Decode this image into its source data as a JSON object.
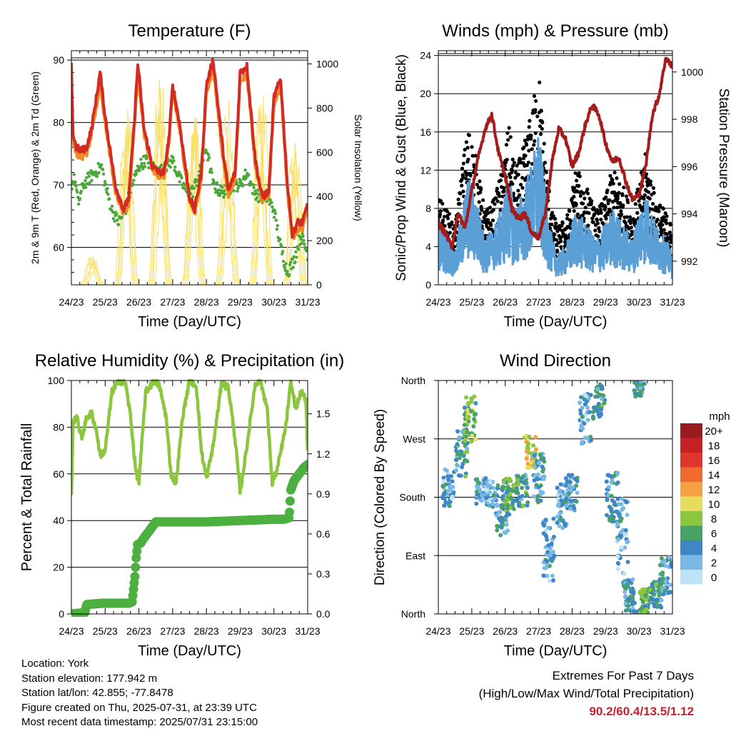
{
  "footer": {
    "location": "Location: York",
    "elevation": "Station elevation: 177.942 m",
    "latlon": "Station lat/lon: 42.855; -77.8478",
    "created": "Figure created on Thu, 2025-07-31, at 23:39 UTC",
    "recent": "Most recent data timestamp: 2025/07/31 23:15:00"
  },
  "extremes": {
    "title": "Extremes For Past 7 Days",
    "subtitle": "(High/Low/Max Wind/Total Precipitation)",
    "values": "90.2/60.4/13.5/1.12"
  },
  "chart_data": [
    {
      "id": "temperature",
      "type": "line",
      "title": "Temperature (F)",
      "xlabel": "Time (Day/UTC)",
      "ylabel": "2m & 9m T (Red, Orange) & 2m Td (Green)",
      "y2label": "Solar Insolation (Yellow)",
      "x_ticks": [
        "24/23",
        "25/23",
        "26/23",
        "27/23",
        "28/23",
        "29/23",
        "30/23",
        "31/23"
      ],
      "xlim": [
        0,
        7
      ],
      "ylim": [
        54,
        91.5
      ],
      "y_ticks": [
        60,
        70,
        80,
        90
      ],
      "y2lim": [
        0,
        1060
      ],
      "y2_ticks": [
        0,
        200,
        400,
        600,
        800,
        1000
      ],
      "grid": true,
      "series": [
        {
          "name": "2m T",
          "color": "#d42a24",
          "x": [
            0,
            0.05,
            0.15,
            0.3,
            0.45,
            0.6,
            0.85,
            1.0,
            1.3,
            1.55,
            1.7,
            1.85,
            1.97,
            2.15,
            2.4,
            2.6,
            2.75,
            2.9,
            3.0,
            3.2,
            3.5,
            3.65,
            3.85,
            4.0,
            4.2,
            4.5,
            4.65,
            4.85,
            5.0,
            5.2,
            5.45,
            5.65,
            5.85,
            6.0,
            6.2,
            6.4,
            6.55,
            6.7,
            6.85,
            7.0
          ],
          "y": [
            89,
            78,
            76,
            75.5,
            76,
            79,
            88,
            81,
            70,
            66,
            68,
            79,
            89.5,
            79,
            73,
            72,
            72,
            78,
            86,
            80,
            68,
            66,
            72,
            86,
            90,
            75,
            69,
            72,
            88,
            89,
            74,
            68,
            69,
            84,
            87,
            70,
            62,
            64,
            64,
            67
          ]
        },
        {
          "name": "9m T",
          "color": "#f08a24",
          "x": [
            0,
            0.05,
            0.15,
            0.3,
            0.45,
            0.6,
            0.85,
            1.0,
            1.3,
            1.55,
            1.7,
            1.85,
            1.97,
            2.15,
            2.4,
            2.6,
            2.75,
            2.9,
            3.0,
            3.2,
            3.5,
            3.65,
            3.85,
            4.0,
            4.2,
            4.5,
            4.65,
            4.85,
            5.0,
            5.2,
            5.45,
            5.65,
            5.85,
            6.0,
            6.2,
            6.4,
            6.55,
            6.7,
            6.85,
            7.0
          ],
          "y": [
            88,
            77,
            75,
            74.5,
            75,
            78,
            86,
            80,
            69,
            65.5,
            67,
            78,
            88,
            78,
            72.5,
            71.5,
            71.5,
            77,
            85,
            79,
            67.5,
            65.5,
            71,
            85,
            88.5,
            74,
            68.5,
            71,
            87,
            87.5,
            73,
            67.5,
            68.5,
            83,
            86,
            69,
            61.5,
            63,
            63,
            66
          ]
        },
        {
          "name": "2m Td",
          "color": "#4aa83a",
          "x": [
            0,
            0.1,
            0.2,
            0.35,
            0.5,
            0.7,
            0.9,
            1.0,
            1.2,
            1.4,
            1.6,
            1.8,
            2.0,
            2.2,
            2.4,
            2.6,
            2.8,
            3.0,
            3.2,
            3.4,
            3.6,
            3.8,
            4.0,
            4.2,
            4.4,
            4.6,
            4.8,
            5.0,
            5.2,
            5.4,
            5.6,
            5.8,
            6.0,
            6.2,
            6.4,
            6.6,
            6.8,
            7.0
          ],
          "y": [
            70,
            71,
            67,
            70,
            71,
            72,
            73,
            70,
            66,
            64,
            66,
            70,
            73,
            74,
            73,
            72,
            73,
            74,
            71,
            69,
            69,
            72,
            76,
            70,
            69,
            69,
            70,
            70,
            72,
            69,
            68,
            68,
            66,
            60,
            56,
            58,
            62,
            59
          ]
        }
      ],
      "secondary": {
        "name": "Solar Insolation",
        "color": "#f8e06a",
        "peaks": [
          {
            "day": 0,
            "peak": 150
          },
          {
            "day": 1,
            "peak": 1000
          },
          {
            "day": 2,
            "peak": 1020
          },
          {
            "day": 3,
            "peak": 950
          },
          {
            "day": 4,
            "peak": 1000
          },
          {
            "day": 5,
            "peak": 980
          },
          {
            "day": 6,
            "peak": 880
          }
        ]
      }
    },
    {
      "id": "winds",
      "type": "line",
      "title": "Winds (mph) & Pressure (mb)",
      "xlabel": "Time (Day/UTC)",
      "ylabel": "Sonic/Prop Wind & Gust (Blue, Black)",
      "y2label": "Station Pressure (Maroon)",
      "x_ticks": [
        "24/23",
        "25/23",
        "26/23",
        "27/23",
        "28/23",
        "29/23",
        "30/23",
        "31/23"
      ],
      "xlim": [
        0,
        7
      ],
      "ylim": [
        0,
        24.5
      ],
      "y_ticks": [
        0,
        4,
        8,
        12,
        16,
        20,
        24
      ],
      "y2lim": [
        991.0,
        1000.9
      ],
      "y2_ticks": [
        992,
        994,
        996,
        998,
        1000
      ],
      "grid": true,
      "series": [
        {
          "name": "Sonic/Prop Wind",
          "color": "#5a9fd6",
          "x": [
            0,
            0.3,
            0.5,
            0.7,
            0.9,
            1.1,
            1.4,
            1.7,
            1.9,
            2.1,
            2.3,
            2.5,
            2.8,
            3.0,
            3.2,
            3.4,
            3.6,
            3.9,
            4.1,
            4.4,
            4.7,
            5.0,
            5.2,
            5.5,
            5.8,
            6.0,
            6.2,
            6.5,
            6.8,
            7.0
          ],
          "y": [
            4,
            3,
            2,
            5,
            7,
            6,
            3,
            4,
            5,
            7,
            5,
            6,
            8,
            10,
            6,
            3,
            2,
            3,
            5,
            4,
            3,
            4,
            5,
            4,
            3,
            5,
            6,
            4,
            3,
            2
          ]
        },
        {
          "name": "Gust",
          "color": "#000000",
          "x": [
            0,
            0.3,
            0.5,
            0.7,
            0.9,
            1.1,
            1.4,
            1.7,
            1.9,
            2.1,
            2.3,
            2.5,
            2.8,
            3.0,
            3.2,
            3.4,
            3.6,
            3.9,
            4.1,
            4.4,
            4.7,
            5.0,
            5.2,
            5.5,
            5.8,
            6.0,
            6.2,
            6.5,
            6.8,
            7.0
          ],
          "y": [
            6,
            5,
            4,
            8,
            11,
            9,
            5,
            6,
            8,
            11,
            8,
            9,
            12,
            15,
            9,
            5,
            4,
            5,
            8,
            7,
            5,
            6,
            8,
            7,
            5,
            7,
            9,
            6,
            5,
            4
          ]
        },
        {
          "name": "Station Pressure",
          "color": "#a41c1c",
          "x": [
            0,
            0.2,
            0.4,
            0.6,
            0.8,
            1.0,
            1.2,
            1.4,
            1.6,
            1.8,
            2.0,
            2.2,
            2.4,
            2.6,
            2.8,
            3.0,
            3.2,
            3.4,
            3.6,
            3.8,
            4.0,
            4.2,
            4.4,
            4.6,
            4.8,
            5.0,
            5.2,
            5.4,
            5.6,
            5.8,
            6.0,
            6.2,
            6.4,
            6.6,
            6.8,
            7.0
          ],
          "y": [
            993.6,
            993.2,
            992.6,
            994.0,
            993.4,
            995.0,
            996.4,
            997.6,
            998.2,
            996.6,
            995.6,
            994.2,
            993.8,
            994.0,
            993.2,
            993.0,
            994.0,
            996.2,
            997.6,
            997.2,
            996.0,
            996.6,
            997.8,
            998.6,
            998.2,
            997.0,
            996.2,
            996.4,
            995.4,
            994.6,
            994.8,
            996.0,
            998.2,
            999.0,
            1000.6,
            1000.2
          ]
        }
      ]
    },
    {
      "id": "humidity",
      "type": "line",
      "title": "Relative Humidity (%) & Precipitation (in)",
      "xlabel": "Time (Day/UTC)",
      "ylabel": "Percent & Total Rainfall",
      "x_ticks": [
        "24/23",
        "25/23",
        "26/23",
        "27/23",
        "28/23",
        "29/23",
        "30/23",
        "31/23"
      ],
      "xlim": [
        0,
        7
      ],
      "ylim": [
        0,
        100
      ],
      "y_ticks": [
        0,
        20,
        40,
        60,
        80,
        100
      ],
      "y2lim": [
        0,
        1.75
      ],
      "y2_ticks": [
        "0.0",
        "0.3",
        "0.6",
        "0.9",
        "1.2",
        "1.5"
      ],
      "grid": true,
      "series": [
        {
          "name": "Relative Humidity",
          "color": "#8cc63e",
          "x": [
            0,
            0.05,
            0.15,
            0.3,
            0.45,
            0.6,
            0.75,
            0.85,
            1.0,
            1.2,
            1.4,
            1.6,
            1.75,
            1.9,
            2.0,
            2.2,
            2.45,
            2.6,
            2.8,
            2.95,
            3.1,
            3.3,
            3.5,
            3.7,
            3.85,
            4.0,
            4.2,
            4.45,
            4.65,
            4.85,
            5.0,
            5.2,
            5.45,
            5.6,
            5.8,
            5.95,
            6.1,
            6.35,
            6.5,
            6.65,
            6.8,
            6.95,
            7.0
          ],
          "y": [
            50,
            82,
            85,
            75,
            84,
            86,
            78,
            68,
            70,
            95,
            100,
            99,
            85,
            62,
            56,
            95,
            100,
            98,
            85,
            60,
            56,
            85,
            100,
            98,
            70,
            58,
            72,
            99,
            97,
            75,
            52,
            72,
            99,
            100,
            88,
            56,
            62,
            80,
            99,
            88,
            95,
            92,
            70
          ]
        },
        {
          "name": "Total Precipitation",
          "color": "#4cb040",
          "x": [
            0,
            0.4,
            0.45,
            0.9,
            1.2,
            1.5,
            1.7,
            1.8,
            1.88,
            1.92,
            1.96,
            2.05,
            2.15,
            2.3,
            2.5,
            3.0,
            4.0,
            5.0,
            6.0,
            6.3,
            6.45,
            6.5,
            6.6,
            6.75,
            6.9,
            7.0
          ],
          "y": [
            0,
            0.01,
            0.07,
            0.08,
            0.08,
            0.08,
            0.08,
            0.09,
            0.28,
            0.42,
            0.52,
            0.53,
            0.57,
            0.62,
            0.69,
            0.69,
            0.69,
            0.7,
            0.71,
            0.71,
            0.72,
            0.93,
            1.0,
            1.05,
            1.1,
            1.12
          ]
        }
      ]
    },
    {
      "id": "direction",
      "type": "scatter",
      "title": "Wind Direction",
      "xlabel": "Time (Day/UTC)",
      "ylabel": "Direction (Colored By Speed)",
      "x_ticks": [
        "24/23",
        "25/23",
        "26/23",
        "27/23",
        "28/23",
        "29/23",
        "30/23",
        "31/23"
      ],
      "xlim": [
        0,
        7
      ],
      "y_ticks": [
        "North",
        "East",
        "South",
        "West",
        "North"
      ],
      "ylim": [
        0,
        360
      ],
      "grid": true,
      "colorbar": {
        "title": "mph",
        "labels": [
          "20+",
          "18",
          "16",
          "14",
          "12",
          "10",
          "8",
          "6",
          "4",
          "2",
          "0"
        ],
        "colors": [
          "#9a1b1e",
          "#c42127",
          "#e0352b",
          "#ef6a2c",
          "#f6a040",
          "#e8dc5c",
          "#8cc63e",
          "#48a268",
          "#3f86c4",
          "#7ab8e6",
          "#bfe3f6"
        ]
      },
      "clusters": [
        {
          "x": 0.3,
          "dir": 195,
          "spread": 30,
          "speed": 3
        },
        {
          "x": 0.7,
          "dir": 250,
          "spread": 40,
          "speed": 5
        },
        {
          "x": 0.95,
          "dir": 300,
          "spread": 40,
          "speed": 7
        },
        {
          "x": 1.3,
          "dir": 190,
          "spread": 20,
          "speed": 3
        },
        {
          "x": 1.6,
          "dir": 185,
          "spread": 20,
          "speed": 3
        },
        {
          "x": 1.9,
          "dir": 160,
          "spread": 40,
          "speed": 4
        },
        {
          "x": 2.1,
          "dir": 180,
          "spread": 30,
          "speed": 6
        },
        {
          "x": 2.5,
          "dir": 190,
          "spread": 25,
          "speed": 5
        },
        {
          "x": 2.75,
          "dir": 250,
          "spread": 25,
          "speed": 10
        },
        {
          "x": 3.0,
          "dir": 210,
          "spread": 40,
          "speed": 4
        },
        {
          "x": 3.3,
          "dir": 100,
          "spread": 50,
          "speed": 3
        },
        {
          "x": 3.7,
          "dir": 170,
          "spread": 40,
          "speed": 3
        },
        {
          "x": 4.0,
          "dir": 190,
          "spread": 30,
          "speed": 4
        },
        {
          "x": 4.4,
          "dir": 300,
          "spread": 40,
          "speed": 3
        },
        {
          "x": 4.8,
          "dir": 330,
          "spread": 30,
          "speed": 5
        },
        {
          "x": 5.2,
          "dir": 180,
          "spread": 40,
          "speed": 4
        },
        {
          "x": 5.5,
          "dir": 120,
          "spread": 60,
          "speed": 3
        },
        {
          "x": 5.7,
          "dir": 30,
          "spread": 25,
          "speed": 4
        },
        {
          "x": 6.0,
          "dir": 350,
          "spread": 15,
          "speed": 4
        },
        {
          "x": 6.2,
          "dir": 20,
          "spread": 20,
          "speed": 6
        },
        {
          "x": 6.5,
          "dir": 30,
          "spread": 20,
          "speed": 5
        },
        {
          "x": 6.8,
          "dir": 60,
          "spread": 30,
          "speed": 4
        }
      ]
    }
  ]
}
